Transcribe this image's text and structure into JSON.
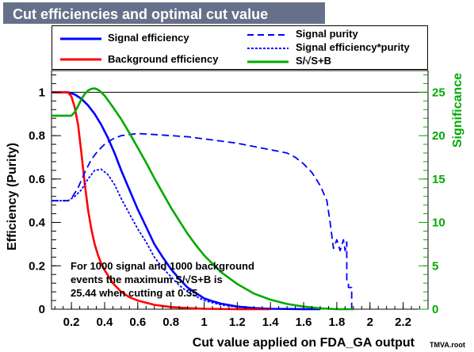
{
  "chart_data": {
    "type": "line",
    "title": "Cut efficiencies and optimal cut value",
    "xlabel": "Cut value applied on FDA_GA output",
    "ylabel": "Efficiency (Purity)",
    "y2label": "Significance",
    "xlim": [
      0.08,
      2.35
    ],
    "ylim": [
      0,
      1.1
    ],
    "y2lim": [
      0,
      27.5
    ],
    "x_ticks": [
      0.2,
      0.4,
      0.6,
      0.8,
      1,
      1.2,
      1.4,
      1.6,
      1.8,
      2,
      2.2
    ],
    "y_ticks": [
      0,
      0.2,
      0.4,
      0.6,
      0.8,
      1
    ],
    "y2_ticks": [
      0,
      5,
      10,
      15,
      20,
      25
    ],
    "grid": false,
    "legend_position": "top",
    "series": [
      {
        "name": "Signal efficiency",
        "axis": "left",
        "color": "#0000ff",
        "style": "solid",
        "x": [
          0.08,
          0.18,
          0.22,
          0.26,
          0.3,
          0.34,
          0.38,
          0.42,
          0.46,
          0.5,
          0.55,
          0.6,
          0.65,
          0.7,
          0.75,
          0.8,
          0.85,
          0.9,
          0.95,
          1.0,
          1.05,
          1.1,
          1.2,
          1.3,
          1.4,
          1.5,
          1.6,
          1.7
        ],
        "y": [
          1.0,
          1.0,
          0.99,
          0.97,
          0.94,
          0.9,
          0.85,
          0.79,
          0.72,
          0.64,
          0.55,
          0.46,
          0.38,
          0.3,
          0.24,
          0.185,
          0.14,
          0.1,
          0.075,
          0.05,
          0.037,
          0.026,
          0.012,
          0.005,
          0.002,
          0.001,
          0.0,
          0.0
        ]
      },
      {
        "name": "Background efficiency",
        "axis": "left",
        "color": "#ff0000",
        "style": "solid",
        "x": [
          0.08,
          0.18,
          0.2,
          0.22,
          0.24,
          0.26,
          0.28,
          0.3,
          0.32,
          0.34,
          0.36,
          0.38,
          0.4,
          0.45,
          0.5,
          0.55,
          0.6,
          0.7,
          0.8,
          0.9,
          1.0,
          1.2,
          1.4
        ],
        "y": [
          1.0,
          1.0,
          0.98,
          0.93,
          0.85,
          0.72,
          0.58,
          0.46,
          0.37,
          0.3,
          0.25,
          0.21,
          0.18,
          0.12,
          0.08,
          0.055,
          0.04,
          0.02,
          0.01,
          0.005,
          0.002,
          0.0,
          0.0
        ]
      },
      {
        "name": "Signal purity",
        "axis": "left",
        "color": "#0000ff",
        "style": "dashed",
        "x": [
          0.08,
          0.18,
          0.2,
          0.24,
          0.28,
          0.32,
          0.36,
          0.4,
          0.45,
          0.5,
          0.55,
          0.6,
          0.7,
          0.8,
          0.9,
          1.0,
          1.1,
          1.2,
          1.3,
          1.4,
          1.5,
          1.55,
          1.6,
          1.65,
          1.7,
          1.74,
          1.76,
          1.78,
          1.8,
          1.82,
          1.84,
          1.85,
          1.86,
          1.86,
          1.87,
          1.87,
          1.88,
          1.89,
          1.89
        ],
        "y": [
          0.5,
          0.5,
          0.51,
          0.56,
          0.63,
          0.69,
          0.73,
          0.76,
          0.785,
          0.8,
          0.805,
          0.81,
          0.805,
          0.8,
          0.795,
          0.785,
          0.775,
          0.765,
          0.75,
          0.735,
          0.72,
          0.7,
          0.67,
          0.63,
          0.57,
          0.5,
          0.4,
          0.28,
          0.32,
          0.27,
          0.32,
          0.27,
          0.31,
          0.13,
          0.12,
          0.1,
          0.1,
          0.1,
          0.0
        ]
      },
      {
        "name": "Signal efficiency*purity",
        "axis": "left",
        "color": "#0000ff",
        "style": "dotted",
        "x": [
          0.08,
          0.18,
          0.22,
          0.26,
          0.3,
          0.34,
          0.38,
          0.42,
          0.46,
          0.5,
          0.55,
          0.6,
          0.65,
          0.7,
          0.75,
          0.8,
          0.85,
          0.9,
          1.0,
          1.1,
          1.2,
          1.4,
          1.6
        ],
        "y": [
          0.5,
          0.5,
          0.52,
          0.55,
          0.6,
          0.64,
          0.645,
          0.62,
          0.575,
          0.51,
          0.44,
          0.37,
          0.31,
          0.24,
          0.19,
          0.15,
          0.11,
          0.08,
          0.04,
          0.02,
          0.01,
          0.002,
          0.0
        ]
      },
      {
        "name": "S/√S+B",
        "axis": "right",
        "color": "#00aa00",
        "style": "solid",
        "x": [
          0.08,
          0.2,
          0.22,
          0.24,
          0.26,
          0.28,
          0.3,
          0.32,
          0.34,
          0.36,
          0.38,
          0.4,
          0.45,
          0.5,
          0.55,
          0.6,
          0.65,
          0.7,
          0.75,
          0.8,
          0.85,
          0.9,
          0.95,
          1.0,
          1.1,
          1.2,
          1.3,
          1.4,
          1.5,
          1.6,
          1.7,
          1.8,
          1.9
        ],
        "y": [
          22.3,
          22.3,
          22.7,
          23.4,
          24.2,
          24.8,
          25.2,
          25.4,
          25.44,
          25.3,
          25.0,
          24.6,
          23.3,
          21.9,
          20.3,
          18.6,
          16.9,
          15.1,
          13.4,
          11.7,
          10.2,
          8.7,
          7.4,
          6.2,
          4.3,
          2.9,
          1.8,
          1.1,
          0.6,
          0.3,
          0.1,
          0.0,
          0.0
        ]
      }
    ],
    "annotation_lines": [
      "For 1000 signal and 1000 background",
      "events the maximum S/√S+B is",
      "25.44 when cutting at  0.35"
    ],
    "watermark": "TMVA.root"
  }
}
